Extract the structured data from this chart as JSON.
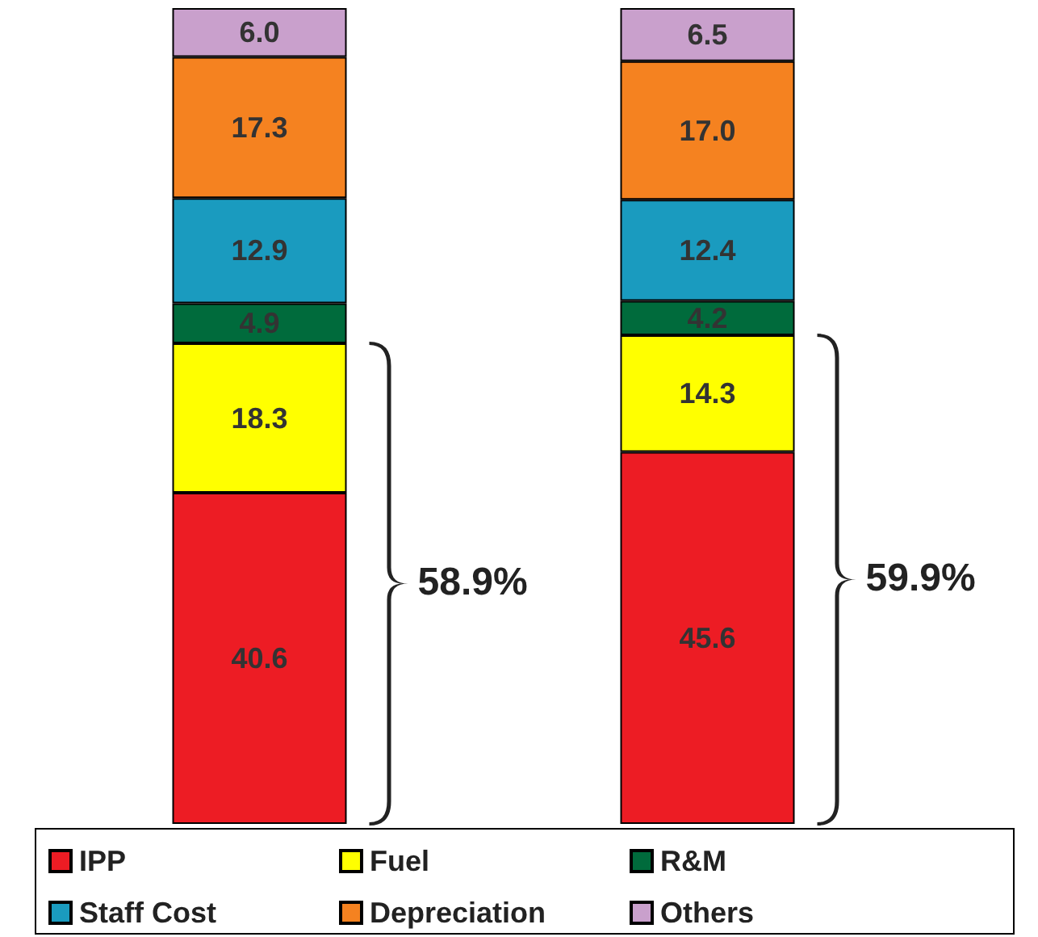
{
  "chart_data": {
    "type": "bar",
    "stacked": true,
    "legend": "bottom",
    "categories": [
      null,
      null
    ],
    "series": [
      {
        "name": "IPP",
        "color": "#ed1c24",
        "values": [
          40.6,
          45.6
        ],
        "value_labels": [
          "40.6",
          "45.6"
        ]
      },
      {
        "name": "Fuel",
        "color": "#ffff00",
        "values": [
          18.3,
          14.3
        ],
        "value_labels": [
          "18.3",
          "14.3"
        ]
      },
      {
        "name": "R&M",
        "color": "#006b3c",
        "values": [
          4.9,
          4.2
        ],
        "value_labels": [
          "4.9",
          "4.2"
        ]
      },
      {
        "name": "Staff Cost",
        "color": "#1a9bbf",
        "values": [
          12.9,
          12.4
        ],
        "value_labels": [
          "12.9",
          "12.4"
        ]
      },
      {
        "name": "Depreciation",
        "color": "#f58220",
        "values": [
          17.3,
          17.0
        ],
        "value_labels": [
          "17.3",
          "17.0"
        ]
      },
      {
        "name": "Others",
        "color": "#c9a0cc",
        "values": [
          6.0,
          6.5
        ],
        "value_labels": [
          "6.0",
          "6.5"
        ]
      }
    ],
    "annotations": [
      "58.9%",
      "59.9%"
    ]
  }
}
